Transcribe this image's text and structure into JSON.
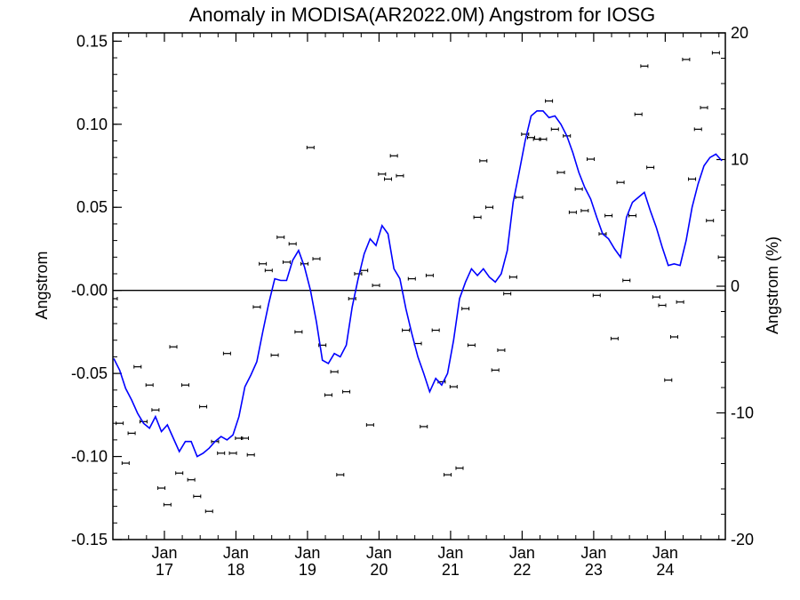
{
  "chart_data": {
    "type": "scatter",
    "title": "Anomaly in MODISA(AR2022.0M) Angstrom for IOSG",
    "ylabel": "Angstrom",
    "ylabel_right": "Angstrom (%)",
    "ylim": [
      -0.15,
      0.155
    ],
    "ylim_right": [
      -20,
      20
    ],
    "y_ticks": [
      0.15,
      0.1,
      0.05,
      -0.0,
      -0.05,
      -0.1,
      -0.15
    ],
    "y_tick_labels": [
      "0.15",
      "0.10",
      "0.05",
      "-0.00",
      "-0.05",
      "-0.10",
      "-0.15"
    ],
    "y_right_ticks": [
      20,
      10,
      0,
      -10,
      -20
    ],
    "y_right_tick_labels": [
      "20",
      "10",
      "0",
      "-10",
      "-20"
    ],
    "xlim": [
      2016.28,
      2024.84
    ],
    "x_ticks": [
      2017,
      2018,
      2019,
      2020,
      2021,
      2022,
      2023,
      2024
    ],
    "x_tick_labels": [
      {
        "month": "Jan",
        "year": "17"
      },
      {
        "month": "Jan",
        "year": "18"
      },
      {
        "month": "Jan",
        "year": "19"
      },
      {
        "month": "Jan",
        "year": "20"
      },
      {
        "month": "Jan",
        "year": "21"
      },
      {
        "month": "Jan",
        "year": "22"
      },
      {
        "month": "Jan",
        "year": "23"
      },
      {
        "month": "Jan",
        "year": "24"
      }
    ],
    "zero_line": true,
    "series": [
      {
        "kind": "monthly-points",
        "color": "#000000",
        "x": [
          2016.292,
          2016.375,
          2016.458,
          2016.542,
          2016.625,
          2016.708,
          2016.792,
          2016.875,
          2016.958,
          2017.042,
          2017.125,
          2017.208,
          2017.292,
          2017.375,
          2017.458,
          2017.542,
          2017.625,
          2017.708,
          2017.792,
          2017.875,
          2017.958,
          2018.042,
          2018.125,
          2018.208,
          2018.292,
          2018.375,
          2018.458,
          2018.542,
          2018.625,
          2018.708,
          2018.792,
          2018.875,
          2018.958,
          2019.042,
          2019.125,
          2019.208,
          2019.292,
          2019.375,
          2019.458,
          2019.542,
          2019.625,
          2019.708,
          2019.792,
          2019.875,
          2019.958,
          2020.042,
          2020.125,
          2020.208,
          2020.292,
          2020.375,
          2020.458,
          2020.542,
          2020.625,
          2020.708,
          2020.792,
          2020.875,
          2020.958,
          2021.042,
          2021.125,
          2021.208,
          2021.292,
          2021.375,
          2021.458,
          2021.542,
          2021.625,
          2021.708,
          2021.792,
          2021.875,
          2021.958,
          2022.042,
          2022.125,
          2022.208,
          2022.292,
          2022.375,
          2022.458,
          2022.542,
          2022.625,
          2022.708,
          2022.792,
          2022.875,
          2022.958,
          2023.042,
          2023.125,
          2023.208,
          2023.292,
          2023.375,
          2023.458,
          2023.542,
          2023.625,
          2023.708,
          2023.792,
          2023.875,
          2023.958,
          2024.042,
          2024.125,
          2024.208,
          2024.292,
          2024.375,
          2024.458,
          2024.542,
          2024.625,
          2024.708,
          2024.792
        ],
        "y": [
          -0.005,
          -0.08,
          -0.104,
          -0.086,
          -0.046,
          -0.079,
          -0.057,
          -0.072,
          -0.119,
          -0.129,
          -0.034,
          -0.11,
          -0.057,
          -0.114,
          -0.124,
          -0.07,
          -0.133,
          -0.091,
          -0.098,
          -0.038,
          -0.098,
          -0.089,
          -0.089,
          -0.099,
          -0.01,
          0.016,
          0.012,
          -0.039,
          0.032,
          0.017,
          0.028,
          -0.025,
          0.016,
          0.086,
          0.019,
          -0.033,
          -0.063,
          -0.049,
          -0.111,
          -0.061,
          -0.005,
          0.01,
          0.012,
          -0.081,
          0.003,
          0.07,
          0.067,
          0.081,
          0.069,
          -0.024,
          0.007,
          -0.032,
          -0.082,
          0.009,
          -0.024,
          -0.055,
          -0.111,
          -0.058,
          -0.107,
          -0.011,
          -0.033,
          0.044,
          0.078,
          0.05,
          -0.048,
          -0.036,
          -0.002,
          0.008,
          0.056,
          0.094,
          0.092,
          0.091,
          0.091,
          0.114,
          0.097,
          0.071,
          0.093,
          0.047,
          0.061,
          0.048,
          0.079,
          -0.003,
          0.034,
          0.045,
          -0.029,
          0.065,
          0.006,
          0.045,
          0.106,
          0.135,
          0.074,
          -0.004,
          -0.009,
          -0.054,
          -0.028,
          -0.007,
          0.139,
          0.067,
          0.097,
          0.11,
          0.042,
          0.143,
          0.02
        ]
      },
      {
        "kind": "running-mean-line",
        "color": "#0000ff",
        "x": [
          2016.292,
          2016.375,
          2016.458,
          2016.542,
          2016.625,
          2016.708,
          2016.792,
          2016.875,
          2016.958,
          2017.042,
          2017.125,
          2017.208,
          2017.292,
          2017.375,
          2017.458,
          2017.542,
          2017.625,
          2017.708,
          2017.792,
          2017.875,
          2017.958,
          2018.042,
          2018.125,
          2018.208,
          2018.292,
          2018.375,
          2018.458,
          2018.542,
          2018.625,
          2018.708,
          2018.792,
          2018.875,
          2018.958,
          2019.042,
          2019.125,
          2019.208,
          2019.292,
          2019.375,
          2019.458,
          2019.542,
          2019.625,
          2019.708,
          2019.792,
          2019.875,
          2019.958,
          2020.042,
          2020.125,
          2020.208,
          2020.292,
          2020.375,
          2020.458,
          2020.542,
          2020.625,
          2020.708,
          2020.792,
          2020.875,
          2020.958,
          2021.042,
          2021.125,
          2021.208,
          2021.292,
          2021.375,
          2021.458,
          2021.542,
          2021.625,
          2021.708,
          2021.792,
          2021.875,
          2021.958,
          2022.042,
          2022.125,
          2022.208,
          2022.292,
          2022.375,
          2022.458,
          2022.542,
          2022.625,
          2022.708,
          2022.792,
          2022.875,
          2022.958,
          2023.042,
          2023.125,
          2023.208,
          2023.292,
          2023.375,
          2023.458,
          2023.542,
          2023.625,
          2023.708,
          2023.792,
          2023.875,
          2023.958,
          2024.042,
          2024.125,
          2024.208,
          2024.292,
          2024.375,
          2024.458,
          2024.542,
          2024.625,
          2024.708,
          2024.792
        ],
        "y": [
          -0.041,
          -0.048,
          -0.059,
          -0.066,
          -0.074,
          -0.08,
          -0.083,
          -0.076,
          -0.085,
          -0.081,
          -0.089,
          -0.097,
          -0.091,
          -0.091,
          -0.1,
          -0.098,
          -0.095,
          -0.091,
          -0.088,
          -0.09,
          -0.087,
          -0.076,
          -0.058,
          -0.051,
          -0.043,
          -0.025,
          -0.008,
          0.007,
          0.006,
          0.006,
          0.018,
          0.024,
          0.014,
          0.0,
          -0.019,
          -0.042,
          -0.044,
          -0.038,
          -0.04,
          -0.033,
          -0.01,
          0.007,
          0.022,
          0.031,
          0.027,
          0.039,
          0.034,
          0.013,
          0.007,
          -0.011,
          -0.026,
          -0.04,
          -0.05,
          -0.061,
          -0.053,
          -0.057,
          -0.05,
          -0.03,
          -0.005,
          0.005,
          0.013,
          0.009,
          0.013,
          0.008,
          0.005,
          0.01,
          0.024,
          0.053,
          0.071,
          0.09,
          0.105,
          0.108,
          0.108,
          0.104,
          0.105,
          0.1,
          0.093,
          0.083,
          0.071,
          0.062,
          0.055,
          0.044,
          0.034,
          0.031,
          0.025,
          0.02,
          0.044,
          0.053,
          0.056,
          0.059,
          0.048,
          0.038,
          0.026,
          0.015,
          0.016,
          0.015,
          0.03,
          0.05,
          0.064,
          0.075,
          0.08,
          0.082,
          0.078
        ]
      }
    ]
  }
}
